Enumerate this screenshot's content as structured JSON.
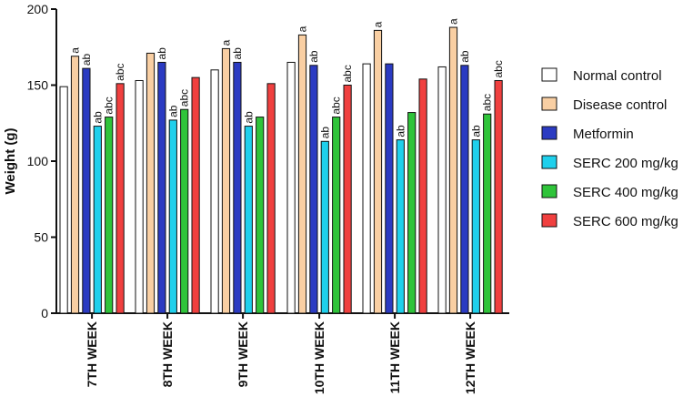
{
  "chart_data": {
    "type": "bar",
    "title": "",
    "xlabel": "",
    "ylabel": "Weight (g)",
    "ylim": [
      0,
      200
    ],
    "yticks": [
      0,
      50,
      100,
      150,
      200
    ],
    "grid": false,
    "legend_position": "right",
    "categories": [
      "7TH WEEK",
      "8TH WEEK",
      "9TH WEEK",
      "10TH WEEK",
      "11TH WEEK",
      "12TH WEEK"
    ],
    "series": [
      {
        "name": "Normal control",
        "color": "#ffffff",
        "values": [
          149,
          153,
          160,
          165,
          164,
          162
        ],
        "labels": [
          "",
          "",
          "",
          "",
          "",
          ""
        ]
      },
      {
        "name": "Disease control",
        "color": "#f9cfa3",
        "values": [
          169,
          171,
          174,
          183,
          186,
          188
        ],
        "labels": [
          "a",
          "",
          "a",
          "a",
          "a",
          "a"
        ]
      },
      {
        "name": "Metformin",
        "color": "#2b3bc2",
        "values": [
          161,
          165,
          165,
          163,
          164,
          163
        ],
        "labels": [
          "ab",
          "ab",
          "ab",
          "ab",
          "",
          "ab"
        ]
      },
      {
        "name": "SERC 200 mg/kg",
        "color": "#1fd0ec",
        "values": [
          123,
          127,
          123,
          113,
          114,
          114
        ],
        "labels": [
          "ab",
          "ab",
          "ab",
          "ab",
          "ab",
          "ab"
        ]
      },
      {
        "name": "SERC 400 mg/kg",
        "color": "#2fc43a",
        "values": [
          129,
          134,
          129,
          129,
          132,
          131
        ],
        "labels": [
          "abc",
          "abc",
          "",
          "abc",
          "",
          "abc"
        ]
      },
      {
        "name": "SERC 600 mg/kg",
        "color": "#f0403f",
        "values": [
          151,
          155,
          151,
          150,
          154,
          153
        ],
        "labels": [
          "abc",
          "",
          "",
          "abc",
          "",
          "abc"
        ]
      }
    ]
  }
}
